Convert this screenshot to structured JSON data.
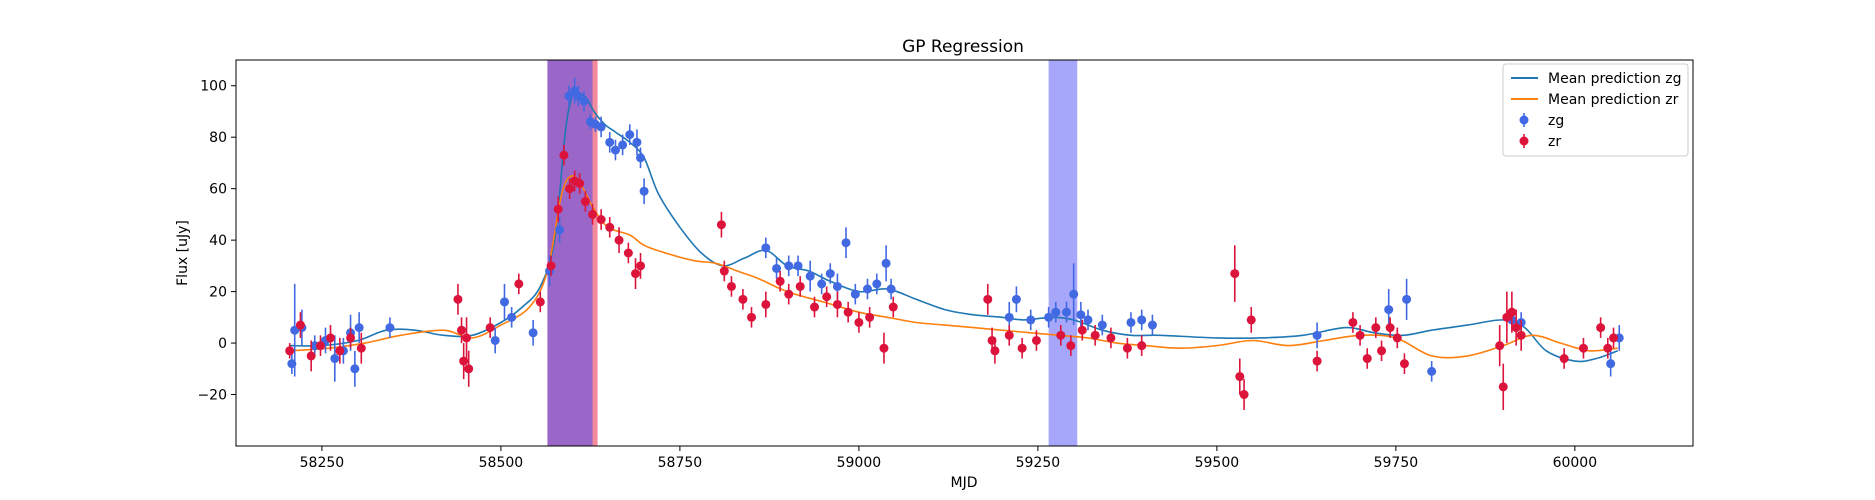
{
  "chart_data": {
    "type": "scatter",
    "title": "GP Regression",
    "xlabel": "MJD",
    "ylabel": "Flux [uJy]",
    "xlim": [
      58130,
      60165
    ],
    "ylim": [
      -40,
      110
    ],
    "xticks": [
      58250,
      58500,
      58750,
      59000,
      59250,
      59500,
      59750,
      60000
    ],
    "yticks": [
      -20,
      0,
      20,
      40,
      60,
      80,
      100
    ],
    "grid": false,
    "legend_position": "top-right",
    "shaded_regions": [
      {
        "x0": 58565,
        "x1": 58635,
        "color": "#f28a9a"
      },
      {
        "x0": 58565,
        "x1": 58628,
        "color": "#9a67c9"
      },
      {
        "x0": 59265,
        "x1": 59305,
        "color": "#a6a6fb"
      }
    ],
    "series": [
      {
        "name": "Mean prediction zg",
        "kind": "line",
        "color": "#1f77b4",
        "x": [
          58205,
          58250,
          58300,
          58340,
          58380,
          58420,
          58460,
          58500,
          58530,
          58555,
          58575,
          58590,
          58600,
          58610,
          58620,
          58630,
          58645,
          58660,
          58680,
          58700,
          58720,
          58750,
          58780,
          58810,
          58840,
          58870,
          58900,
          58930,
          58960,
          59000,
          59040,
          59080,
          59120,
          59160,
          59200,
          59230,
          59270,
          59300,
          59340,
          59380,
          59420,
          59500,
          59560,
          59620,
          59680,
          59720,
          59760,
          59800,
          59850,
          59900,
          59930,
          59960,
          60000,
          60030,
          60060
        ],
        "y": [
          -1,
          -1,
          1,
          5,
          5,
          3,
          3,
          8,
          14,
          22,
          40,
          82,
          96,
          97,
          95,
          90,
          85,
          82,
          78,
          72,
          58,
          45,
          35,
          30,
          33,
          36,
          30,
          28,
          24,
          20,
          21,
          17,
          13,
          11,
          10,
          9,
          10,
          9,
          5,
          3,
          3,
          2,
          2,
          3,
          6,
          4,
          3,
          5,
          7,
          9,
          6,
          -3,
          -7,
          -6,
          -3
        ]
      },
      {
        "name": "Mean prediction zr",
        "kind": "line",
        "color": "#ff7f0e",
        "x": [
          58205,
          58260,
          58310,
          58360,
          58420,
          58460,
          58500,
          58540,
          58565,
          58585,
          58600,
          58615,
          58630,
          58650,
          58680,
          58700,
          58730,
          58770,
          58800,
          58830,
          58860,
          58900,
          58950,
          59000,
          59040,
          59080,
          59120,
          59160,
          59200,
          59240,
          59280,
          59320,
          59360,
          59400,
          59450,
          59500,
          59550,
          59600,
          59650,
          59700,
          59750,
          59800,
          59850,
          59900,
          59940,
          59980,
          60020,
          60060
        ],
        "y": [
          -3,
          -2,
          0,
          3,
          5,
          2,
          7,
          14,
          28,
          58,
          65,
          60,
          52,
          45,
          42,
          38,
          35,
          32,
          31,
          28,
          25,
          20,
          16,
          12,
          10,
          8,
          7,
          6,
          5,
          4,
          3,
          2,
          0,
          -1,
          -2,
          -1,
          1,
          -1,
          1,
          3,
          2,
          -5,
          -5,
          -1,
          3,
          0,
          -3,
          -2
        ]
      },
      {
        "name": "zg",
        "kind": "errorbar",
        "color": "#4169e1",
        "x": [
          58208,
          58212,
          58222,
          58240,
          58255,
          58268,
          58280,
          58290,
          58296,
          58302,
          58345,
          58492,
          58505,
          58515,
          58545,
          58568,
          58582,
          58595,
          58603,
          58608,
          58616,
          58625,
          58632,
          58640,
          58652,
          58660,
          58670,
          58680,
          58690,
          58695,
          58700,
          58870,
          58885,
          58902,
          58915,
          58932,
          58948,
          58960,
          58970,
          58982,
          58995,
          59012,
          59025,
          59038,
          59045,
          59210,
          59220,
          59240,
          59265,
          59275,
          59290,
          59300,
          59310,
          59320,
          59340,
          59380,
          59395,
          59410,
          59640,
          59740,
          59765,
          59800,
          59912,
          59925,
          60050,
          60062
        ],
        "y": [
          -8,
          5,
          6,
          -1,
          1,
          -6,
          -3,
          4,
          -10,
          6,
          6,
          1,
          16,
          10,
          4,
          28,
          44,
          96,
          98,
          96,
          94,
          86,
          85,
          84,
          78,
          75,
          77,
          81,
          78,
          72,
          59,
          37,
          29,
          30,
          30,
          26,
          23,
          27,
          22,
          39,
          19,
          21,
          23,
          31,
          21,
          10,
          17,
          9,
          10,
          12,
          12,
          19,
          11,
          9,
          7,
          8,
          9,
          7,
          3,
          13,
          17,
          -11,
          9,
          8,
          -8,
          2
        ],
        "err": [
          4,
          18,
          7,
          4,
          5,
          9,
          5,
          7,
          7,
          6,
          4,
          5,
          7,
          4,
          5,
          6,
          5,
          4,
          5,
          4,
          4,
          3,
          3,
          4,
          4,
          4,
          4,
          4,
          5,
          4,
          5,
          4,
          4,
          4,
          4,
          6,
          4,
          4,
          5,
          6,
          4,
          4,
          4,
          7,
          4,
          6,
          5,
          4,
          4,
          4,
          4,
          12,
          5,
          4,
          4,
          4,
          4,
          4,
          5,
          8,
          8,
          4,
          4,
          4,
          5,
          5
        ]
      },
      {
        "name": "zr",
        "kind": "errorbar",
        "color": "#dc143c",
        "x": [
          58205,
          58220,
          58235,
          58248,
          58262,
          58275,
          58290,
          58305,
          58440,
          58445,
          58448,
          58452,
          58455,
          58485,
          58525,
          58555,
          58570,
          58580,
          58588,
          58596,
          58603,
          58610,
          58618,
          58628,
          58640,
          58652,
          58665,
          58678,
          58688,
          58695,
          58808,
          58812,
          58822,
          58838,
          58850,
          58870,
          58890,
          58902,
          58918,
          58938,
          58955,
          58970,
          58985,
          59000,
          59015,
          59035,
          59048,
          59180,
          59186,
          59190,
          59210,
          59228,
          59248,
          59282,
          59296,
          59312,
          59330,
          59352,
          59375,
          59395,
          59525,
          59532,
          59538,
          59548,
          59640,
          59690,
          59700,
          59710,
          59722,
          59730,
          59742,
          59752,
          59762,
          59895,
          59900,
          59905,
          59912,
          59918,
          59925,
          59985,
          60012,
          60036,
          60046,
          60054
        ],
        "y": [
          -3,
          7,
          -5,
          -1,
          2,
          -3,
          2,
          -2,
          17,
          5,
          -7,
          2,
          -10,
          6,
          23,
          16,
          30,
          52,
          73,
          60,
          63,
          62,
          55,
          50,
          48,
          45,
          40,
          35,
          27,
          30,
          46,
          28,
          22,
          17,
          10,
          15,
          24,
          19,
          22,
          14,
          18,
          15,
          12,
          8,
          10,
          -2,
          14,
          17,
          1,
          -3,
          3,
          -2,
          1,
          3,
          -1,
          5,
          3,
          2,
          -2,
          -1,
          27,
          -13,
          -20,
          9,
          -7,
          8,
          3,
          -6,
          6,
          -3,
          6,
          2,
          -8,
          -1,
          -17,
          10,
          12,
          6,
          3,
          -6,
          -2,
          6,
          -2,
          2
        ],
        "err": [
          3,
          5,
          6,
          4,
          5,
          5,
          4,
          6,
          6,
          5,
          7,
          8,
          7,
          4,
          4,
          4,
          4,
          5,
          4,
          4,
          4,
          4,
          4,
          4,
          4,
          4,
          5,
          4,
          6,
          5,
          5,
          4,
          4,
          4,
          4,
          5,
          4,
          4,
          4,
          4,
          4,
          5,
          4,
          4,
          4,
          6,
          4,
          6,
          5,
          5,
          4,
          4,
          4,
          4,
          4,
          4,
          4,
          4,
          4,
          4,
          11,
          7,
          6,
          5,
          4,
          4,
          4,
          4,
          4,
          4,
          4,
          4,
          4,
          8,
          9,
          10,
          8,
          7,
          6,
          4,
          4,
          4,
          4,
          4
        ]
      }
    ]
  }
}
